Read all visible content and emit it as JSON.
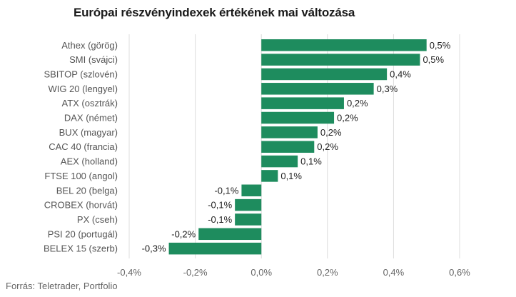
{
  "title": "Európai részvényindexek értékének mai változása",
  "source": "Forrás: Teletrader, Portfolio",
  "colors": {
    "bar": "#1e8c5e",
    "grid": "#dcdcdc"
  },
  "chart_data": {
    "type": "bar",
    "orientation": "horizontal",
    "categories": [
      "Athex (görög)",
      "SMI (svájci)",
      "SBITOP (szlovén)",
      "WIG 20 (lengyel)",
      "ATX (osztrák)",
      "DAX (német)",
      "BUX (magyar)",
      "CAC 40 (francia)",
      "AEX (holland)",
      "FTSE 100 (angol)",
      "BEL 20 (belga)",
      "CROBEX (horvát)",
      "PX (cseh)",
      "PSI 20 (portugál)",
      "BELEX 15 (szerb)"
    ],
    "values": [
      0.5,
      0.48,
      0.38,
      0.34,
      0.25,
      0.22,
      0.17,
      0.16,
      0.11,
      0.05,
      -0.06,
      -0.08,
      -0.08,
      -0.19,
      -0.28
    ],
    "value_labels": [
      "0,5%",
      "0,5%",
      "0,4%",
      "0,3%",
      "0,2%",
      "0,2%",
      "0,2%",
      "0,2%",
      "0,1%",
      "0,1%",
      "-0,1%",
      "-0,1%",
      "-0,1%",
      "-0,2%",
      "-0,3%"
    ],
    "xticks": [
      -0.4,
      -0.2,
      0.0,
      0.2,
      0.4,
      0.6
    ],
    "xtick_labels": [
      "-0,4%",
      "-0,2%",
      "0,0%",
      "0,2%",
      "0,4%",
      "0,6%"
    ],
    "xlim": [
      -0.4,
      0.6
    ],
    "grid": true,
    "legend": "none"
  }
}
